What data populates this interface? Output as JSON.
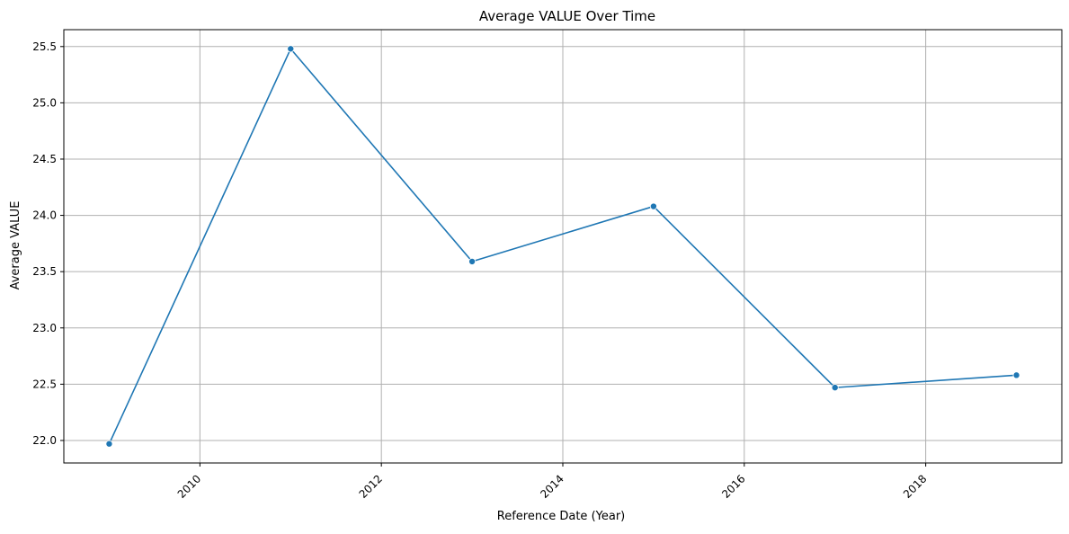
{
  "chart_data": {
    "type": "line",
    "title": "Average VALUE Over Time",
    "xlabel": "Reference Date (Year)",
    "ylabel": "Average VALUE",
    "x": [
      2009,
      2011,
      2013,
      2015,
      2017,
      2019
    ],
    "series": [
      {
        "values": [
          21.97,
          25.48,
          23.59,
          24.08,
          22.47,
          22.58
        ],
        "color": "#1f77b4",
        "marker": "circle"
      }
    ],
    "xlim": [
      2008.5,
      2019.5
    ],
    "ylim": [
      21.8,
      25.65
    ],
    "xticks": [
      "2010",
      "2012",
      "2014",
      "2016",
      "2018"
    ],
    "yticks": [
      "22.0",
      "22.5",
      "23.0",
      "23.5",
      "24.0",
      "24.5",
      "25.0",
      "25.5"
    ],
    "xtick_rotation": 45,
    "grid": true,
    "legend": false
  }
}
